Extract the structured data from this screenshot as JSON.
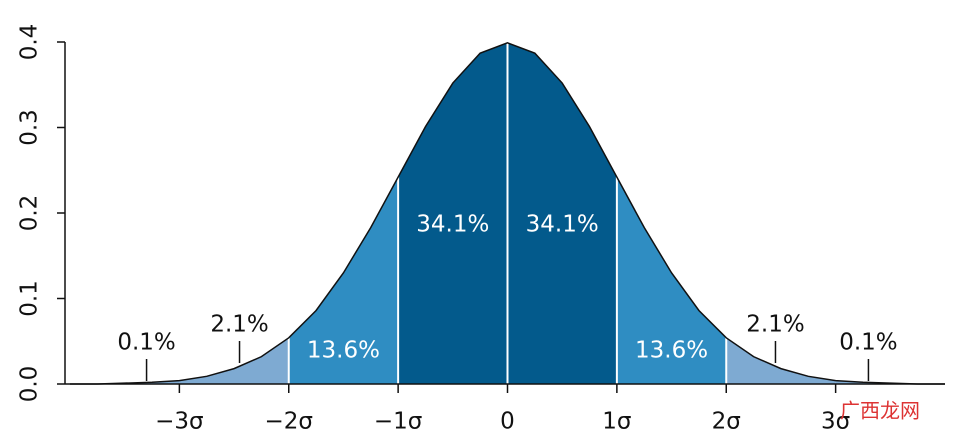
{
  "chart_data": {
    "type": "normal-area",
    "curve": {
      "x": [
        -4,
        -3.75,
        -3.5,
        -3.25,
        -3,
        -2.75,
        -2.5,
        -2.25,
        -2,
        -1.75,
        -1.5,
        -1.25,
        -1,
        -0.75,
        -0.5,
        -0.25,
        0,
        0.25,
        0.5,
        0.75,
        1,
        1.25,
        1.5,
        1.75,
        2,
        2.25,
        2.5,
        2.75,
        3,
        3.25,
        3.5,
        3.75,
        4
      ],
      "values": [
        0,
        0,
        0.001,
        0.002,
        0.004,
        0.009,
        0.018,
        0.032,
        0.054,
        0.086,
        0.13,
        0.183,
        0.242,
        0.301,
        0.352,
        0.387,
        0.399,
        0.387,
        0.352,
        0.301,
        0.242,
        0.183,
        0.13,
        0.086,
        0.054,
        0.032,
        0.018,
        0.009,
        0.004,
        0.002,
        0.001,
        0,
        0
      ]
    },
    "regions": [
      {
        "from": -4,
        "to": -3,
        "value": 0.1,
        "value_label": "0.1%",
        "color": "#7eaad2"
      },
      {
        "from": -3,
        "to": -2,
        "value": 2.1,
        "value_label": "2.1%",
        "color": "#7eaad2"
      },
      {
        "from": -2,
        "to": -1,
        "value": 13.6,
        "value_label": "13.6%",
        "color": "#2f8dc2"
      },
      {
        "from": -1,
        "to": 0,
        "value": 34.1,
        "value_label": "34.1%",
        "color": "#035a8c"
      },
      {
        "from": 0,
        "to": 1,
        "value": 34.1,
        "value_label": "34.1%",
        "color": "#035a8c"
      },
      {
        "from": 1,
        "to": 2,
        "value": 13.6,
        "value_label": "13.6%",
        "color": "#2f8dc2"
      },
      {
        "from": 2,
        "to": 3,
        "value": 2.1,
        "value_label": "2.1%",
        "color": "#7eaad2"
      },
      {
        "from": 3,
        "to": 4,
        "value": 0.1,
        "value_label": "0.1%",
        "color": "#7eaad2"
      }
    ],
    "xlim": [
      -4,
      4
    ],
    "ylim": [
      0,
      0.4
    ],
    "xticks": [
      {
        "value": -3,
        "label": "−3σ"
      },
      {
        "value": -2,
        "label": "−2σ"
      },
      {
        "value": -1,
        "label": "−1σ"
      },
      0,
      {
        "value": 1,
        "label": "1σ"
      },
      {
        "value": 2,
        "label": "2σ"
      },
      {
        "value": 3,
        "label": "3σ"
      }
    ],
    "yticks": [
      {
        "value": 0,
        "label": "0.0"
      },
      0.1,
      0.2,
      0.3,
      0.4
    ],
    "watermark": "广西龙网"
  }
}
